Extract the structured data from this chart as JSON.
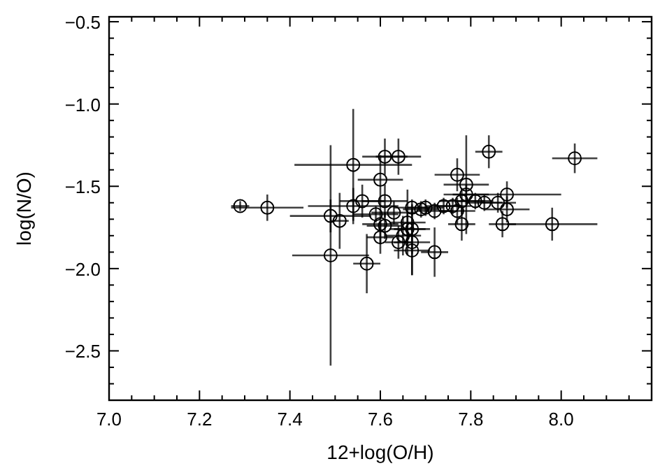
{
  "chart_data": {
    "type": "scatter",
    "xlabel": "12+log(O/H)",
    "ylabel": "log(N/O)",
    "xlim": [
      7.0,
      8.2
    ],
    "ylim": [
      -2.8,
      -0.47
    ],
    "xticks": [
      {
        "value": 7.0,
        "label": "7.0"
      },
      {
        "value": 7.05,
        "label": null
      },
      {
        "value": 7.1,
        "label": null
      },
      {
        "value": 7.15,
        "label": null
      },
      {
        "value": 7.2,
        "label": "7.2"
      },
      {
        "value": 7.25,
        "label": null
      },
      {
        "value": 7.3,
        "label": null
      },
      {
        "value": 7.35,
        "label": null
      },
      {
        "value": 7.4,
        "label": "7.4"
      },
      {
        "value": 7.45,
        "label": null
      },
      {
        "value": 7.5,
        "label": null
      },
      {
        "value": 7.55,
        "label": null
      },
      {
        "value": 7.6,
        "label": "7.6"
      },
      {
        "value": 7.65,
        "label": null
      },
      {
        "value": 7.7,
        "label": null
      },
      {
        "value": 7.75,
        "label": null
      },
      {
        "value": 7.8,
        "label": "7.8"
      },
      {
        "value": 7.85,
        "label": null
      },
      {
        "value": 7.9,
        "label": null
      },
      {
        "value": 7.95,
        "label": null
      },
      {
        "value": 8.0,
        "label": "8.0"
      },
      {
        "value": 8.05,
        "label": null
      },
      {
        "value": 8.1,
        "label": null
      },
      {
        "value": 8.15,
        "label": null
      }
    ],
    "yticks": [
      {
        "value": -2.7,
        "label": null
      },
      {
        "value": -2.6,
        "label": null
      },
      {
        "value": -2.5,
        "label": "−2.5"
      },
      {
        "value": -2.4,
        "label": null
      },
      {
        "value": -2.3,
        "label": null
      },
      {
        "value": -2.2,
        "label": null
      },
      {
        "value": -2.1,
        "label": null
      },
      {
        "value": -2.0,
        "label": "−2.0"
      },
      {
        "value": -1.9,
        "label": null
      },
      {
        "value": -1.8,
        "label": null
      },
      {
        "value": -1.7,
        "label": null
      },
      {
        "value": -1.6,
        "label": null
      },
      {
        "value": -1.5,
        "label": "−1.5"
      },
      {
        "value": -1.4,
        "label": null
      },
      {
        "value": -1.3,
        "label": null
      },
      {
        "value": -1.2,
        "label": null
      },
      {
        "value": -1.1,
        "label": null
      },
      {
        "value": -1.0,
        "label": "−1.0"
      },
      {
        "value": -0.9,
        "label": null
      },
      {
        "value": -0.8,
        "label": null
      },
      {
        "value": -0.7,
        "label": null
      },
      {
        "value": -0.6,
        "label": null
      },
      {
        "value": -0.5,
        "label": "−0.5"
      }
    ],
    "grid": false,
    "marker": "circle",
    "series": [
      {
        "color": "#000000",
        "x": [
          7.29,
          7.35,
          7.49,
          7.49,
          7.51,
          7.54,
          7.54,
          7.56,
          7.57,
          7.6,
          7.61,
          7.64,
          7.61,
          7.59,
          7.6,
          7.6,
          7.61,
          7.63,
          7.64,
          7.65,
          7.66,
          7.66,
          7.67,
          7.67,
          7.67,
          7.67,
          7.69,
          7.7,
          7.72,
          7.72,
          7.74,
          7.76,
          7.77,
          7.77,
          7.78,
          7.78,
          7.79,
          7.79,
          7.81,
          7.83,
          7.84,
          7.86,
          7.87,
          7.88,
          7.88,
          7.98,
          8.03
        ],
        "values": [
          -1.62,
          -1.63,
          -1.68,
          -1.92,
          -1.71,
          -1.37,
          -1.62,
          -1.59,
          -1.97,
          -1.46,
          -1.32,
          -1.32,
          -1.59,
          -1.67,
          -1.73,
          -1.81,
          -1.74,
          -1.66,
          -1.84,
          -1.8,
          -1.72,
          -1.76,
          -1.63,
          -1.76,
          -1.84,
          -1.89,
          -1.64,
          -1.63,
          -1.65,
          -1.9,
          -1.62,
          -1.62,
          -1.43,
          -1.65,
          -1.59,
          -1.73,
          -1.49,
          -1.55,
          -1.59,
          -1.6,
          -1.29,
          -1.6,
          -1.73,
          -1.55,
          -1.64,
          -1.73,
          -1.33
        ],
        "errors": [
          0.03,
          0.08,
          0.1,
          0.67,
          0.17,
          0.34,
          0.11,
          0.1,
          0.18,
          0.15,
          0.11,
          0.11,
          0.1,
          0.05,
          0.12,
          0.1,
          0.08,
          0.07,
          0.1,
          0.12,
          0.2,
          0.1,
          0.05,
          0.15,
          0.2,
          0.15,
          0.05,
          0.05,
          0.05,
          0.15,
          0.05,
          0.05,
          0.1,
          0.08,
          0.08,
          0.1,
          0.3,
          0.06,
          0.05,
          0.05,
          0.1,
          0.06,
          0.08,
          0.08,
          0.08,
          0.1,
          0.09
        ],
        "xerrors": [
          0.02,
          0.08,
          0.09,
          0.085,
          0.02,
          0.13,
          0.1,
          0.05,
          0.03,
          0.05,
          0.05,
          0.05,
          0.05,
          0.05,
          0.04,
          0.03,
          0.04,
          0.05,
          0.03,
          0.04,
          0.04,
          0.04,
          0.04,
          0.04,
          0.04,
          0.04,
          0.04,
          0.04,
          0.04,
          0.03,
          0.04,
          0.04,
          0.05,
          0.04,
          0.05,
          0.03,
          0.05,
          0.05,
          0.04,
          0.04,
          0.03,
          0.04,
          0.03,
          0.12,
          0.05,
          0.1,
          0.05
        ]
      }
    ]
  }
}
